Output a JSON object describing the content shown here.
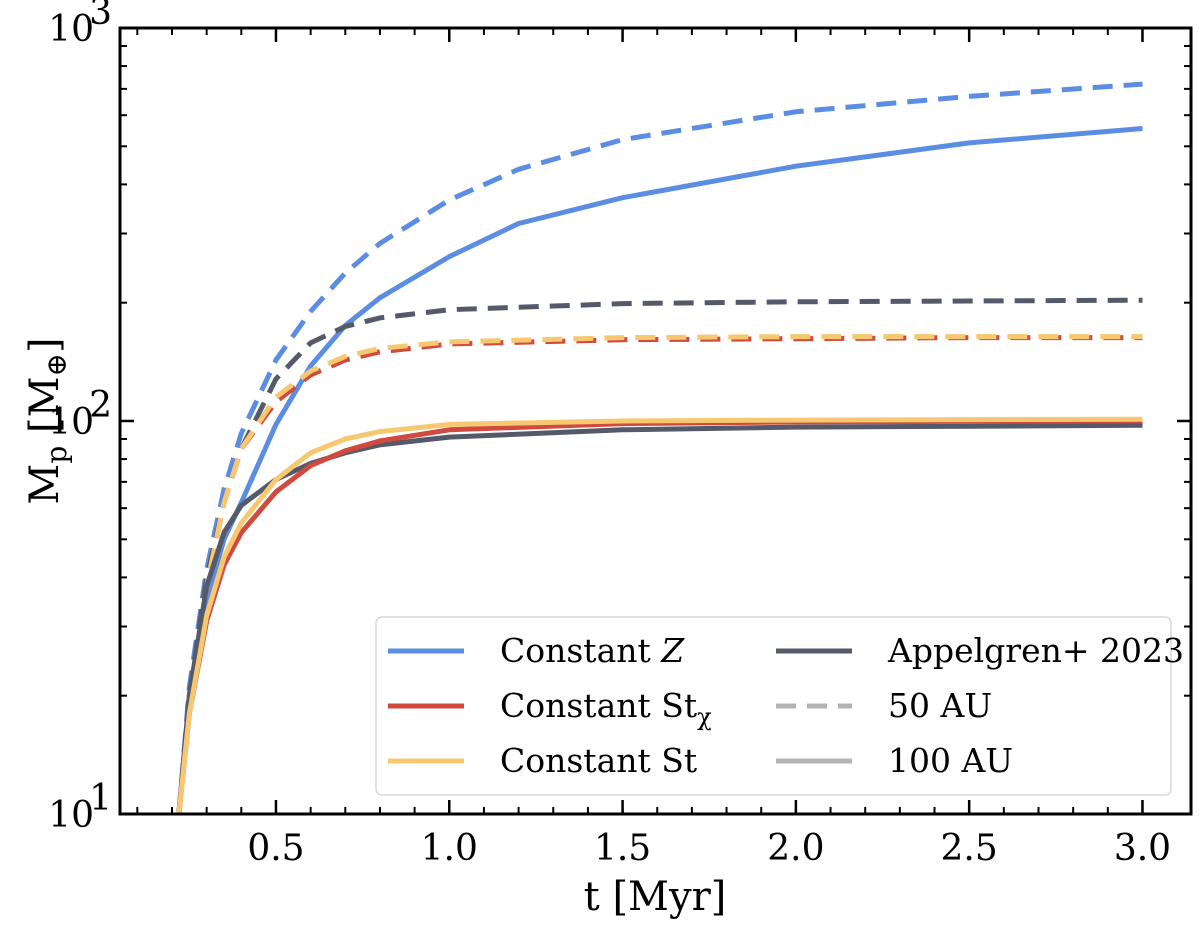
{
  "chart_data": {
    "type": "line",
    "xlabel": "t [Myr]",
    "ylabel": "M_p [M_⊕]",
    "xlim": [
      0.05,
      3.14
    ],
    "ylim": [
      10,
      1000
    ],
    "yscale": "log",
    "x_ticks": [
      {
        "value": 0.5,
        "label": "0.5"
      },
      {
        "value": 1.0,
        "label": "1.0"
      },
      {
        "value": 1.5,
        "label": "1.5"
      },
      {
        "value": 2.0,
        "label": "2.0"
      },
      {
        "value": 2.5,
        "label": "2.5"
      },
      {
        "value": 3.0,
        "label": "3.0"
      }
    ],
    "y_ticks": [
      {
        "value": 10,
        "base": "10",
        "exp": "1"
      },
      {
        "value": 100,
        "base": "10",
        "exp": "2"
      },
      {
        "value": 1000,
        "base": "10",
        "exp": "3"
      }
    ],
    "grid": false,
    "legend_position": "lower-right",
    "legend": [
      {
        "label": "Constant ",
        "italic": "Z",
        "sub": "",
        "color": "#5b8ee3",
        "style": "solid"
      },
      {
        "label": "Constant St",
        "italic": "",
        "sub": "χ",
        "color": "#d14a3f",
        "style": "solid"
      },
      {
        "label": "Constant St",
        "italic": "",
        "sub": "",
        "color": "#f7c86f",
        "style": "solid"
      },
      {
        "label": "Appelgren+ 2023",
        "italic": "",
        "sub": "",
        "color": "#555a6a",
        "style": "solid"
      },
      {
        "label": "50 AU",
        "italic": "",
        "sub": "",
        "color": "#b4b4b4",
        "style": "dashed"
      },
      {
        "label": "100 AU",
        "italic": "",
        "sub": "",
        "color": "#b4b4b4",
        "style": "solid"
      }
    ],
    "series": [
      {
        "name": "Constant Z",
        "group": "50 AU",
        "color": "#5b8ee3",
        "style": "dashed",
        "x": [
          0.22,
          0.25,
          0.3,
          0.35,
          0.4,
          0.5,
          0.6,
          0.7,
          0.8,
          1.0,
          1.2,
          1.5,
          2.0,
          2.5,
          3.0
        ],
        "y": [
          10,
          21,
          42,
          67,
          93,
          143,
          190,
          238,
          283,
          365,
          437,
          520,
          612,
          670,
          720
        ]
      },
      {
        "name": "Constant Z",
        "group": "100 AU",
        "color": "#5b8ee3",
        "style": "solid",
        "x": [
          0.22,
          0.25,
          0.3,
          0.35,
          0.4,
          0.5,
          0.6,
          0.7,
          0.8,
          1.0,
          1.2,
          1.5,
          2.0,
          2.5,
          3.0
        ],
        "y": [
          10,
          20,
          35,
          50,
          62,
          98,
          138,
          175,
          206,
          262,
          318,
          370,
          445,
          510,
          555
        ]
      },
      {
        "name": "Appelgren+ 2023",
        "group": "50 AU",
        "color": "#555a6a",
        "style": "dashed",
        "x": [
          0.22,
          0.25,
          0.3,
          0.35,
          0.4,
          0.5,
          0.6,
          0.7,
          0.8,
          1.0,
          1.5,
          2.0,
          2.5,
          3.0
        ],
        "y": [
          10,
          20,
          40,
          62,
          85,
          128,
          158,
          174,
          183,
          192,
          199,
          201,
          202,
          203
        ]
      },
      {
        "name": "Constant St_χ",
        "group": "50 AU",
        "color": "#d14a3f",
        "style": "dashed",
        "x": [
          0.22,
          0.25,
          0.3,
          0.35,
          0.4,
          0.5,
          0.6,
          0.7,
          0.8,
          1.0,
          1.5,
          2.0,
          2.5,
          3.0
        ],
        "y": [
          10,
          19,
          38,
          62,
          85,
          112,
          131,
          143,
          150,
          157,
          161,
          162,
          163,
          163
        ]
      },
      {
        "name": "Constant St",
        "group": "50 AU",
        "color": "#f7c86f",
        "style": "dashed",
        "x": [
          0.22,
          0.25,
          0.3,
          0.35,
          0.4,
          0.5,
          0.6,
          0.7,
          0.8,
          1.0,
          1.5,
          2.0,
          2.5,
          3.0
        ],
        "y": [
          10,
          19,
          38,
          62,
          85,
          115,
          134,
          146,
          153,
          159,
          163,
          164,
          164,
          164
        ]
      },
      {
        "name": "Appelgren+ 2023",
        "group": "100 AU",
        "color": "#555a6a",
        "style": "solid",
        "x": [
          0.22,
          0.25,
          0.3,
          0.35,
          0.4,
          0.5,
          0.6,
          0.7,
          0.8,
          1.0,
          1.5,
          2.0,
          2.5,
          3.0
        ],
        "y": [
          10,
          20,
          38,
          52,
          61,
          71,
          78,
          83,
          87,
          91,
          95,
          96.5,
          97,
          97.5
        ]
      },
      {
        "name": "Constant St_χ",
        "group": "100 AU",
        "color": "#d14a3f",
        "style": "solid",
        "x": [
          0.22,
          0.25,
          0.3,
          0.35,
          0.4,
          0.5,
          0.6,
          0.7,
          0.8,
          1.0,
          1.5,
          2.0,
          2.5,
          3.0
        ],
        "y": [
          10,
          18,
          31,
          43,
          52,
          66,
          77,
          84,
          89,
          95,
          98.5,
          99.5,
          99.8,
          100
        ]
      },
      {
        "name": "Constant St",
        "group": "100 AU",
        "color": "#f7c86f",
        "style": "solid",
        "x": [
          0.22,
          0.25,
          0.3,
          0.35,
          0.4,
          0.5,
          0.6,
          0.7,
          0.8,
          1.0,
          1.5,
          2.0,
          2.5,
          3.0
        ],
        "y": [
          10,
          18,
          32,
          45,
          55,
          71,
          83,
          90,
          94,
          98,
          100,
          100.5,
          100.8,
          101
        ]
      }
    ]
  }
}
